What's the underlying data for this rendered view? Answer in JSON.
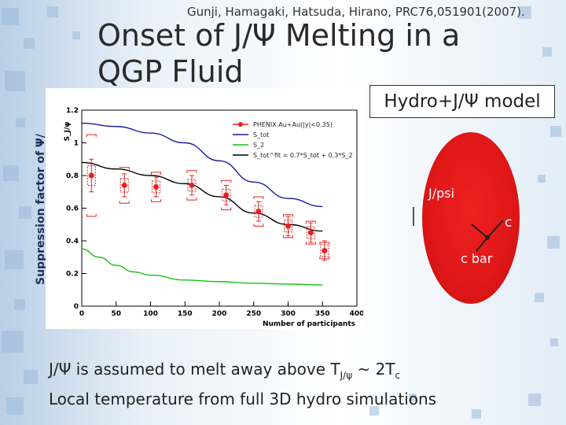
{
  "citation": "Gunji, Hamagaki, Hatsuda, Hirano, PRC76,051901(2007).",
  "title": "Onset of J/Ψ Melting in a QGP Fluid",
  "model_box": "Hydro+J/Ψ model",
  "side_label": "Suppression factor of Ψ/",
  "diagram": {
    "jpsi": "J/psi",
    "c": "c",
    "cbar": "c bar"
  },
  "bottom": {
    "line1_a": "J/Ψ is assumed to melt away above T",
    "line1_sub1": "J/ψ",
    "line1_b": " ~ 2T",
    "line1_sub2": "c",
    "line2": "Local temperature from full 3D hydro simulations"
  },
  "colors": {
    "phenix": "#e82020",
    "s_tot": "#1a1aa0",
    "s2": "#18c018",
    "fit": "#000000",
    "sphere": "#e01818"
  },
  "chart_data": {
    "type": "line",
    "title": "",
    "xlabel": "Number of participants",
    "ylabel": "S_J/ψ",
    "xlim": [
      0,
      400
    ],
    "ylim": [
      0,
      1.2
    ],
    "xticks": [
      0,
      50,
      100,
      150,
      200,
      250,
      300,
      350,
      400
    ],
    "yticks": [
      0,
      0.2,
      0.4,
      0.6,
      0.8,
      1,
      1.2
    ],
    "legend": [
      "PHENIX Au+Au(|y|<0.35)",
      "S_tot",
      "S_2",
      "S_tot^fit = 0.7*S_tot + 0.3*S_2"
    ],
    "series": [
      {
        "name": "S_tot",
        "x": [
          0,
          50,
          100,
          150,
          200,
          250,
          300,
          350
        ],
        "y": [
          1.12,
          1.1,
          1.06,
          1.0,
          0.89,
          0.76,
          0.66,
          0.61
        ]
      },
      {
        "name": "S_2",
        "x": [
          0,
          25,
          50,
          75,
          100,
          150,
          200,
          250,
          300,
          350
        ],
        "y": [
          0.35,
          0.3,
          0.25,
          0.21,
          0.19,
          0.16,
          0.15,
          0.14,
          0.135,
          0.13
        ]
      },
      {
        "name": "S_tot^fit",
        "x": [
          0,
          50,
          100,
          150,
          200,
          250,
          300,
          350
        ],
        "y": [
          0.88,
          0.84,
          0.8,
          0.75,
          0.67,
          0.57,
          0.5,
          0.46
        ]
      }
    ],
    "points": {
      "name": "PHENIX Au+Au(|y|<0.35)",
      "x": [
        14,
        62,
        108,
        160,
        210,
        257,
        300,
        333,
        353
      ],
      "y": [
        0.8,
        0.74,
        0.73,
        0.74,
        0.68,
        0.58,
        0.49,
        0.45,
        0.34
      ],
      "stat_err": [
        0.1,
        0.07,
        0.06,
        0.06,
        0.06,
        0.06,
        0.06,
        0.06,
        0.06
      ],
      "sys_err": [
        0.25,
        0.11,
        0.09,
        0.09,
        0.09,
        0.09,
        0.07,
        0.07,
        0.05
      ]
    }
  }
}
